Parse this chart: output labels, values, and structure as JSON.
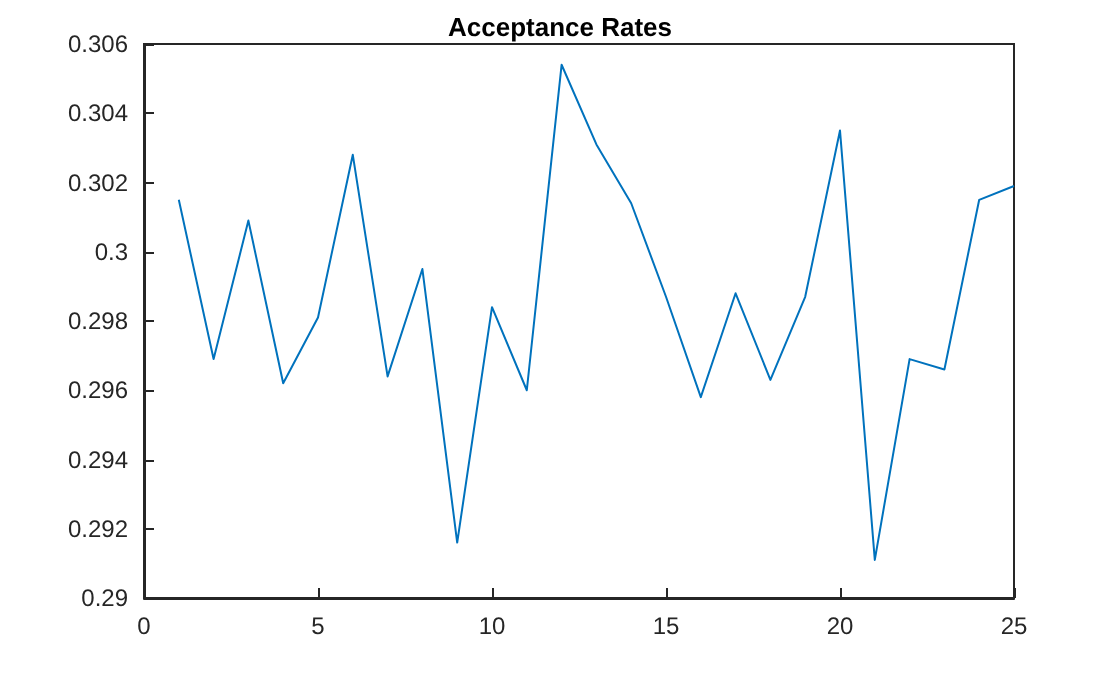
{
  "chart_data": {
    "type": "line",
    "title": "Acceptance Rates",
    "x": [
      1,
      2,
      3,
      4,
      5,
      6,
      7,
      8,
      9,
      10,
      11,
      12,
      13,
      14,
      15,
      16,
      17,
      18,
      19,
      20,
      21,
      22,
      23,
      24,
      25
    ],
    "series": [
      {
        "color": "#0072bd",
        "values": [
          0.3015,
          0.2969,
          0.3009,
          0.2962,
          0.2981,
          0.3028,
          0.2964,
          0.2995,
          0.2916,
          0.2984,
          0.296,
          0.3054,
          0.3031,
          0.3014,
          0.2987,
          0.2958,
          0.2988,
          0.2963,
          0.2987,
          0.3035,
          0.2911,
          0.2969,
          0.2966,
          0.3015,
          0.3019
        ]
      }
    ],
    "xlim": [
      0,
      25
    ],
    "xticks": [
      0,
      5,
      10,
      15,
      20,
      25
    ],
    "ylim": [
      0.29,
      0.306
    ],
    "yticks": [
      0.29,
      0.292,
      0.294,
      0.296,
      0.298,
      0.3,
      0.302,
      0.304,
      0.306
    ],
    "grid": false,
    "marker": "none",
    "line_style": "solid"
  }
}
